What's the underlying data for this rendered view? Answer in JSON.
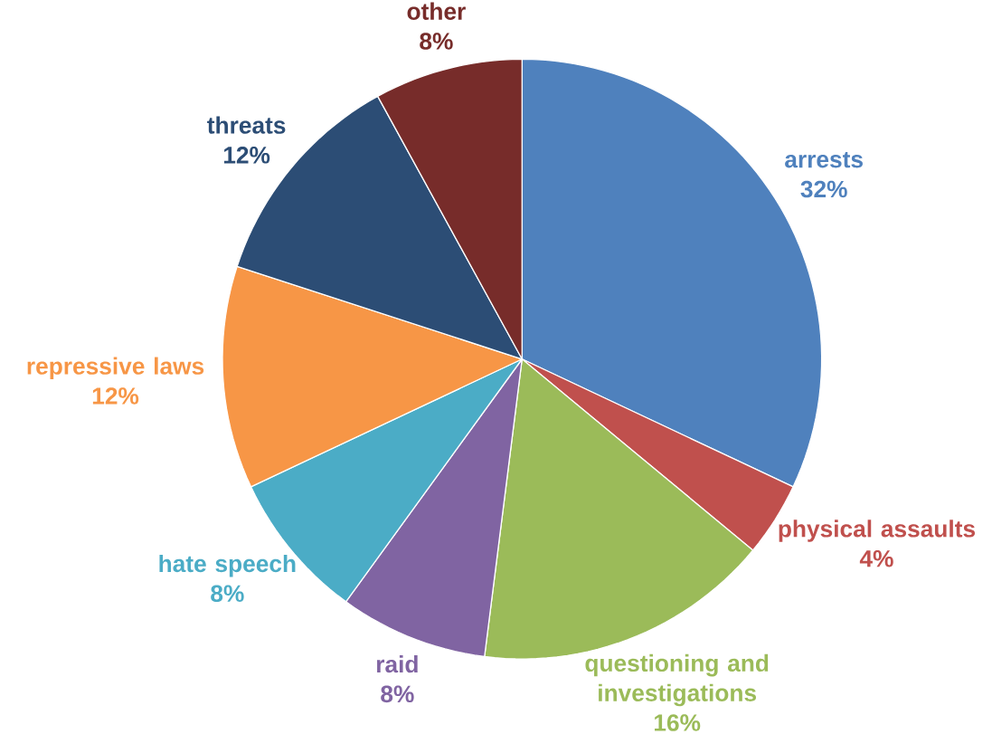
{
  "chart_data": {
    "type": "pie",
    "categories": [
      "arrests",
      "physical assaults",
      "questioning and investigations",
      "raid",
      "hate speech",
      "repressive laws",
      "threats",
      "other"
    ],
    "values": [
      32,
      4,
      16,
      8,
      8,
      12,
      12,
      8
    ],
    "value_labels": [
      "32%",
      "4%",
      "16%",
      "8%",
      "8%",
      "12%",
      "12%",
      "8%"
    ],
    "colors": [
      "#4f81bd",
      "#c0504d",
      "#9bbb59",
      "#8064a2",
      "#4bacc6",
      "#f79646",
      "#2c4d75",
      "#772c2a"
    ]
  }
}
